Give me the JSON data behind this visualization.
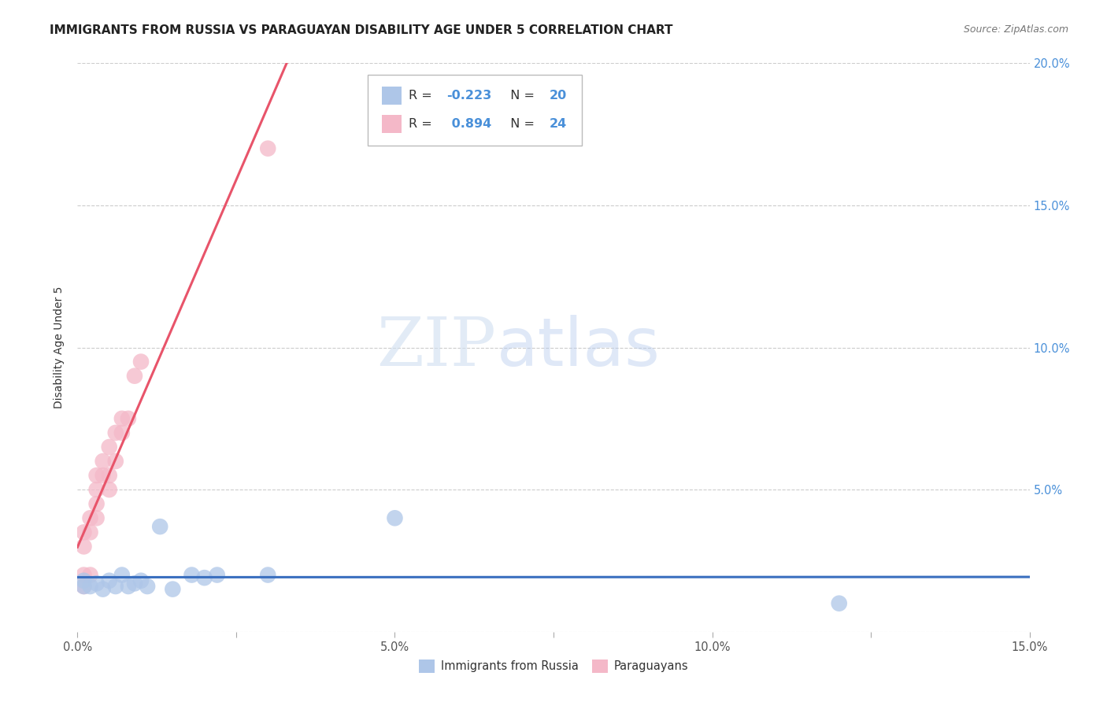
{
  "title": "IMMIGRANTS FROM RUSSIA VS PARAGUAYAN DISABILITY AGE UNDER 5 CORRELATION CHART",
  "source": "Source: ZipAtlas.com",
  "ylabel": "Disability Age Under 5",
  "xlim": [
    0,
    0.15
  ],
  "ylim": [
    0,
    0.2
  ],
  "xticks": [
    0.0,
    0.025,
    0.05,
    0.075,
    0.1,
    0.125,
    0.15
  ],
  "yticks": [
    0.0,
    0.05,
    0.1,
    0.15,
    0.2
  ],
  "xtick_labels": [
    "0.0%",
    "",
    "5.0%",
    "",
    "10.0%",
    "",
    "15.0%"
  ],
  "ytick_labels_right": [
    "",
    "5.0%",
    "10.0%",
    "15.0%",
    "20.0%"
  ],
  "russia_R": -0.223,
  "russia_N": 20,
  "paraguay_R": 0.894,
  "paraguay_N": 24,
  "russia_color": "#aec6e8",
  "paraguay_color": "#f4b8c8",
  "russia_line_color": "#3a6fbf",
  "paraguay_line_color": "#e8546a",
  "russia_x": [
    0.001,
    0.001,
    0.002,
    0.003,
    0.004,
    0.005,
    0.006,
    0.007,
    0.008,
    0.009,
    0.01,
    0.011,
    0.013,
    0.015,
    0.018,
    0.02,
    0.022,
    0.03,
    0.05,
    0.12
  ],
  "russia_y": [
    0.016,
    0.018,
    0.016,
    0.017,
    0.015,
    0.018,
    0.016,
    0.02,
    0.016,
    0.017,
    0.018,
    0.016,
    0.037,
    0.015,
    0.02,
    0.019,
    0.02,
    0.02,
    0.04,
    0.01
  ],
  "paraguay_x": [
    0.001,
    0.001,
    0.001,
    0.001,
    0.002,
    0.002,
    0.002,
    0.003,
    0.003,
    0.003,
    0.003,
    0.004,
    0.004,
    0.005,
    0.005,
    0.005,
    0.006,
    0.006,
    0.007,
    0.007,
    0.008,
    0.009,
    0.01,
    0.03
  ],
  "paraguay_y": [
    0.016,
    0.02,
    0.03,
    0.035,
    0.02,
    0.035,
    0.04,
    0.04,
    0.045,
    0.05,
    0.055,
    0.055,
    0.06,
    0.05,
    0.055,
    0.065,
    0.06,
    0.07,
    0.07,
    0.075,
    0.075,
    0.09,
    0.095,
    0.17
  ],
  "watermark_zip": "ZIP",
  "watermark_atlas": "atlas",
  "background_color": "#ffffff",
  "grid_color": "#cccccc",
  "title_fontsize": 11,
  "tick_label_color_right": "#4a90d9",
  "legend_r_color": "#4a90d9",
  "legend_n_color": "#4a90d9"
}
